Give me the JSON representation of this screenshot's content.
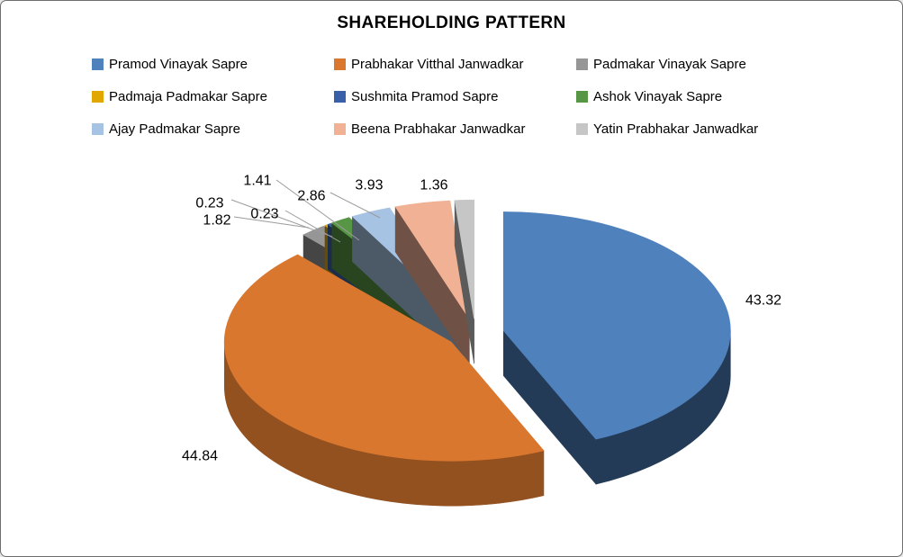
{
  "chart_data": {
    "type": "pie",
    "style": "3d-exploded-pie",
    "title": "SHAREHOLDING PATTERN",
    "legend_position": "top",
    "start_angle_deg": -90,
    "direction": "clockwise",
    "label_format": "0.00",
    "background_color": "#FFFFFF",
    "series": [
      {
        "name": "Pramod Vinayak Sapre",
        "value": 43.32,
        "color": "#4F81BD"
      },
      {
        "name": "Prabhakar Vitthal Janwadkar",
        "value": 44.84,
        "color": "#D9772F"
      },
      {
        "name": "Padmakar Vinayak Sapre",
        "value": 1.82,
        "color": "#969696"
      },
      {
        "name": "Padmaja Padmakar Sapre",
        "value": 0.23,
        "color": "#DFA700"
      },
      {
        "name": "Sushmita Pramod Sapre",
        "value": 0.23,
        "color": "#3A5FA9"
      },
      {
        "name": "Ashok Vinayak Sapre",
        "value": 1.41,
        "color": "#579645"
      },
      {
        "name": "Ajay Padmakar Sapre",
        "value": 2.86,
        "color": "#A6C3E3"
      },
      {
        "name": "Beena Prabhakar Janwadkar",
        "value": 3.93,
        "color": "#F1B195"
      },
      {
        "name": "Yatin Prabhakar Janwadkar",
        "value": 1.36,
        "color": "#C6C6C6"
      }
    ]
  }
}
